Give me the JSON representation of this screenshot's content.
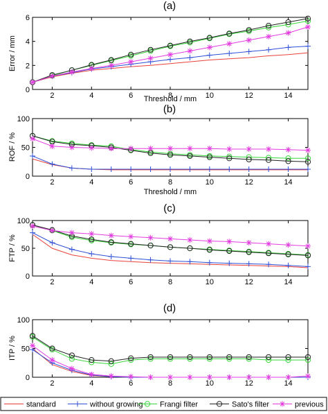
{
  "series_styles": {
    "standard": {
      "color": "#e8413a",
      "marker": "none"
    },
    "without_growing": {
      "color": "#2e4fd6",
      "marker": "plus"
    },
    "frangi": {
      "color": "#38d63a",
      "marker": "circle"
    },
    "satos": {
      "color": "#222222",
      "marker": "circle"
    },
    "previous": {
      "color": "#e23ce0",
      "marker": "star"
    }
  },
  "legend": {
    "items": [
      {
        "key": "standard",
        "label": "standard"
      },
      {
        "key": "without_growing",
        "label": "without growing"
      },
      {
        "key": "frangi",
        "label": "Frangi filter"
      },
      {
        "key": "satos",
        "label": "Sato's filter"
      },
      {
        "key": "previous",
        "label": "previous"
      }
    ]
  },
  "chart_data": [
    {
      "type": "line",
      "title": "(a)",
      "xlabel": "Threshold / mm",
      "ylabel": "Error / mm",
      "xlim": [
        1,
        15
      ],
      "ylim": [
        0,
        6
      ],
      "xticks": [
        2,
        4,
        6,
        8,
        10,
        12,
        14
      ],
      "yticks": [
        0,
        2,
        4,
        6
      ],
      "x": [
        1,
        2,
        3,
        4,
        5,
        6,
        7,
        8,
        9,
        10,
        11,
        12,
        13,
        14,
        15
      ],
      "series": [
        {
          "key": "standard",
          "values": [
            0.6,
            1.05,
            1.35,
            1.6,
            1.75,
            1.9,
            2.0,
            2.15,
            2.3,
            2.45,
            2.55,
            2.65,
            2.8,
            2.9,
            3.05
          ]
        },
        {
          "key": "without_growing",
          "values": [
            0.6,
            1.1,
            1.4,
            1.7,
            1.9,
            2.1,
            2.3,
            2.5,
            2.65,
            2.85,
            3.0,
            3.15,
            3.3,
            3.5,
            3.6
          ]
        },
        {
          "key": "frangi",
          "values": [
            0.6,
            1.15,
            1.6,
            2.0,
            2.4,
            2.8,
            3.2,
            3.6,
            3.9,
            4.25,
            4.6,
            4.85,
            5.15,
            5.4,
            5.7
          ]
        },
        {
          "key": "satos",
          "values": [
            0.6,
            1.2,
            1.6,
            2.05,
            2.45,
            2.9,
            3.3,
            3.65,
            4.0,
            4.3,
            4.65,
            4.95,
            5.3,
            5.6,
            5.9
          ]
        },
        {
          "key": "previous",
          "values": [
            0.6,
            1.1,
            1.45,
            1.75,
            2.0,
            2.3,
            2.6,
            2.9,
            3.2,
            3.5,
            3.8,
            4.1,
            4.4,
            4.7,
            5.2
          ]
        }
      ]
    },
    {
      "type": "line",
      "title": "(b)",
      "xlabel": "Threshold / mm",
      "ylabel": "ROF / %",
      "xlim": [
        1,
        15
      ],
      "ylim": [
        0,
        100
      ],
      "xticks": [
        2,
        4,
        6,
        8,
        10,
        12,
        14
      ],
      "yticks": [
        0,
        50,
        100
      ],
      "x": [
        1,
        2,
        3,
        4,
        5,
        6,
        7,
        8,
        9,
        10,
        11,
        12,
        13,
        14,
        15
      ],
      "series": [
        {
          "key": "standard",
          "values": [
            30,
            20,
            14,
            12,
            11,
            11,
            11,
            11,
            11,
            11,
            11,
            11,
            11,
            11,
            11
          ]
        },
        {
          "key": "without_growing",
          "values": [
            35,
            21,
            14,
            12,
            12,
            12,
            12,
            12,
            12,
            12,
            12,
            12,
            12,
            12,
            12
          ]
        },
        {
          "key": "frangi",
          "values": [
            70,
            61,
            57,
            54,
            52,
            46,
            42,
            39,
            37,
            35,
            34,
            33,
            32,
            31,
            31
          ]
        },
        {
          "key": "satos",
          "values": [
            70,
            60,
            55,
            53,
            50,
            45,
            40,
            37,
            35,
            33,
            31,
            29,
            28,
            26,
            25
          ]
        },
        {
          "key": "previous",
          "values": [
            65,
            52,
            50,
            49,
            48,
            48,
            48,
            48,
            48,
            48,
            47,
            47,
            47,
            46,
            45
          ]
        }
      ]
    },
    {
      "type": "line",
      "title": "(c)",
      "xlabel": "",
      "ylabel": "FTP / %",
      "xlim": [
        1,
        15
      ],
      "ylim": [
        0,
        100
      ],
      "xticks": [
        2,
        4,
        6,
        8,
        10,
        12,
        14
      ],
      "yticks": [
        0,
        50,
        100
      ],
      "x": [
        1,
        2,
        3,
        4,
        5,
        6,
        7,
        8,
        9,
        10,
        11,
        12,
        13,
        14,
        15
      ],
      "series": [
        {
          "key": "standard",
          "values": [
            75,
            50,
            38,
            32,
            28,
            26,
            24,
            23,
            22,
            21,
            20,
            19,
            18,
            17,
            15
          ]
        },
        {
          "key": "without_growing",
          "values": [
            78,
            60,
            48,
            40,
            35,
            32,
            29,
            27,
            26,
            24,
            23,
            22,
            21,
            19,
            17
          ]
        },
        {
          "key": "frangi",
          "values": [
            92,
            82,
            70,
            64,
            60,
            57,
            55,
            52,
            50,
            48,
            46,
            44,
            42,
            40,
            38
          ]
        },
        {
          "key": "satos",
          "values": [
            92,
            83,
            72,
            66,
            61,
            58,
            55,
            52,
            50,
            47,
            45,
            43,
            41,
            39,
            37
          ]
        },
        {
          "key": "previous",
          "values": [
            90,
            82,
            78,
            76,
            73,
            71,
            69,
            67,
            65,
            63,
            62,
            60,
            58,
            56,
            54
          ]
        }
      ]
    },
    {
      "type": "line",
      "title": "(d)",
      "xlabel": "",
      "ylabel": "ITP / %",
      "xlim": [
        1,
        15
      ],
      "ylim": [
        0,
        100
      ],
      "xticks": [
        2,
        4,
        6,
        8,
        10,
        12,
        14
      ],
      "yticks": [
        0,
        50,
        100
      ],
      "x": [
        1,
        2,
        3,
        4,
        5,
        6,
        7,
        8,
        9,
        10,
        11,
        12,
        13,
        14,
        15
      ],
      "series": [
        {
          "key": "standard",
          "values": [
            50,
            22,
            10,
            3,
            1,
            0,
            0,
            0,
            0,
            0,
            0,
            0,
            0,
            0,
            0
          ]
        },
        {
          "key": "without_growing",
          "values": [
            48,
            25,
            12,
            4,
            1,
            0,
            0,
            0,
            0,
            0,
            0,
            0,
            0,
            0,
            0
          ]
        },
        {
          "key": "frangi",
          "values": [
            70,
            48,
            32,
            26,
            23,
            30,
            32,
            32,
            32,
            32,
            32,
            32,
            30,
            30,
            30
          ]
        },
        {
          "key": "satos",
          "values": [
            72,
            50,
            38,
            30,
            28,
            33,
            35,
            35,
            35,
            35,
            35,
            35,
            35,
            35,
            35
          ]
        },
        {
          "key": "previous",
          "values": [
            55,
            30,
            15,
            5,
            2,
            1,
            0,
            0,
            0,
            0,
            0,
            0,
            0,
            0,
            2
          ]
        }
      ]
    }
  ]
}
